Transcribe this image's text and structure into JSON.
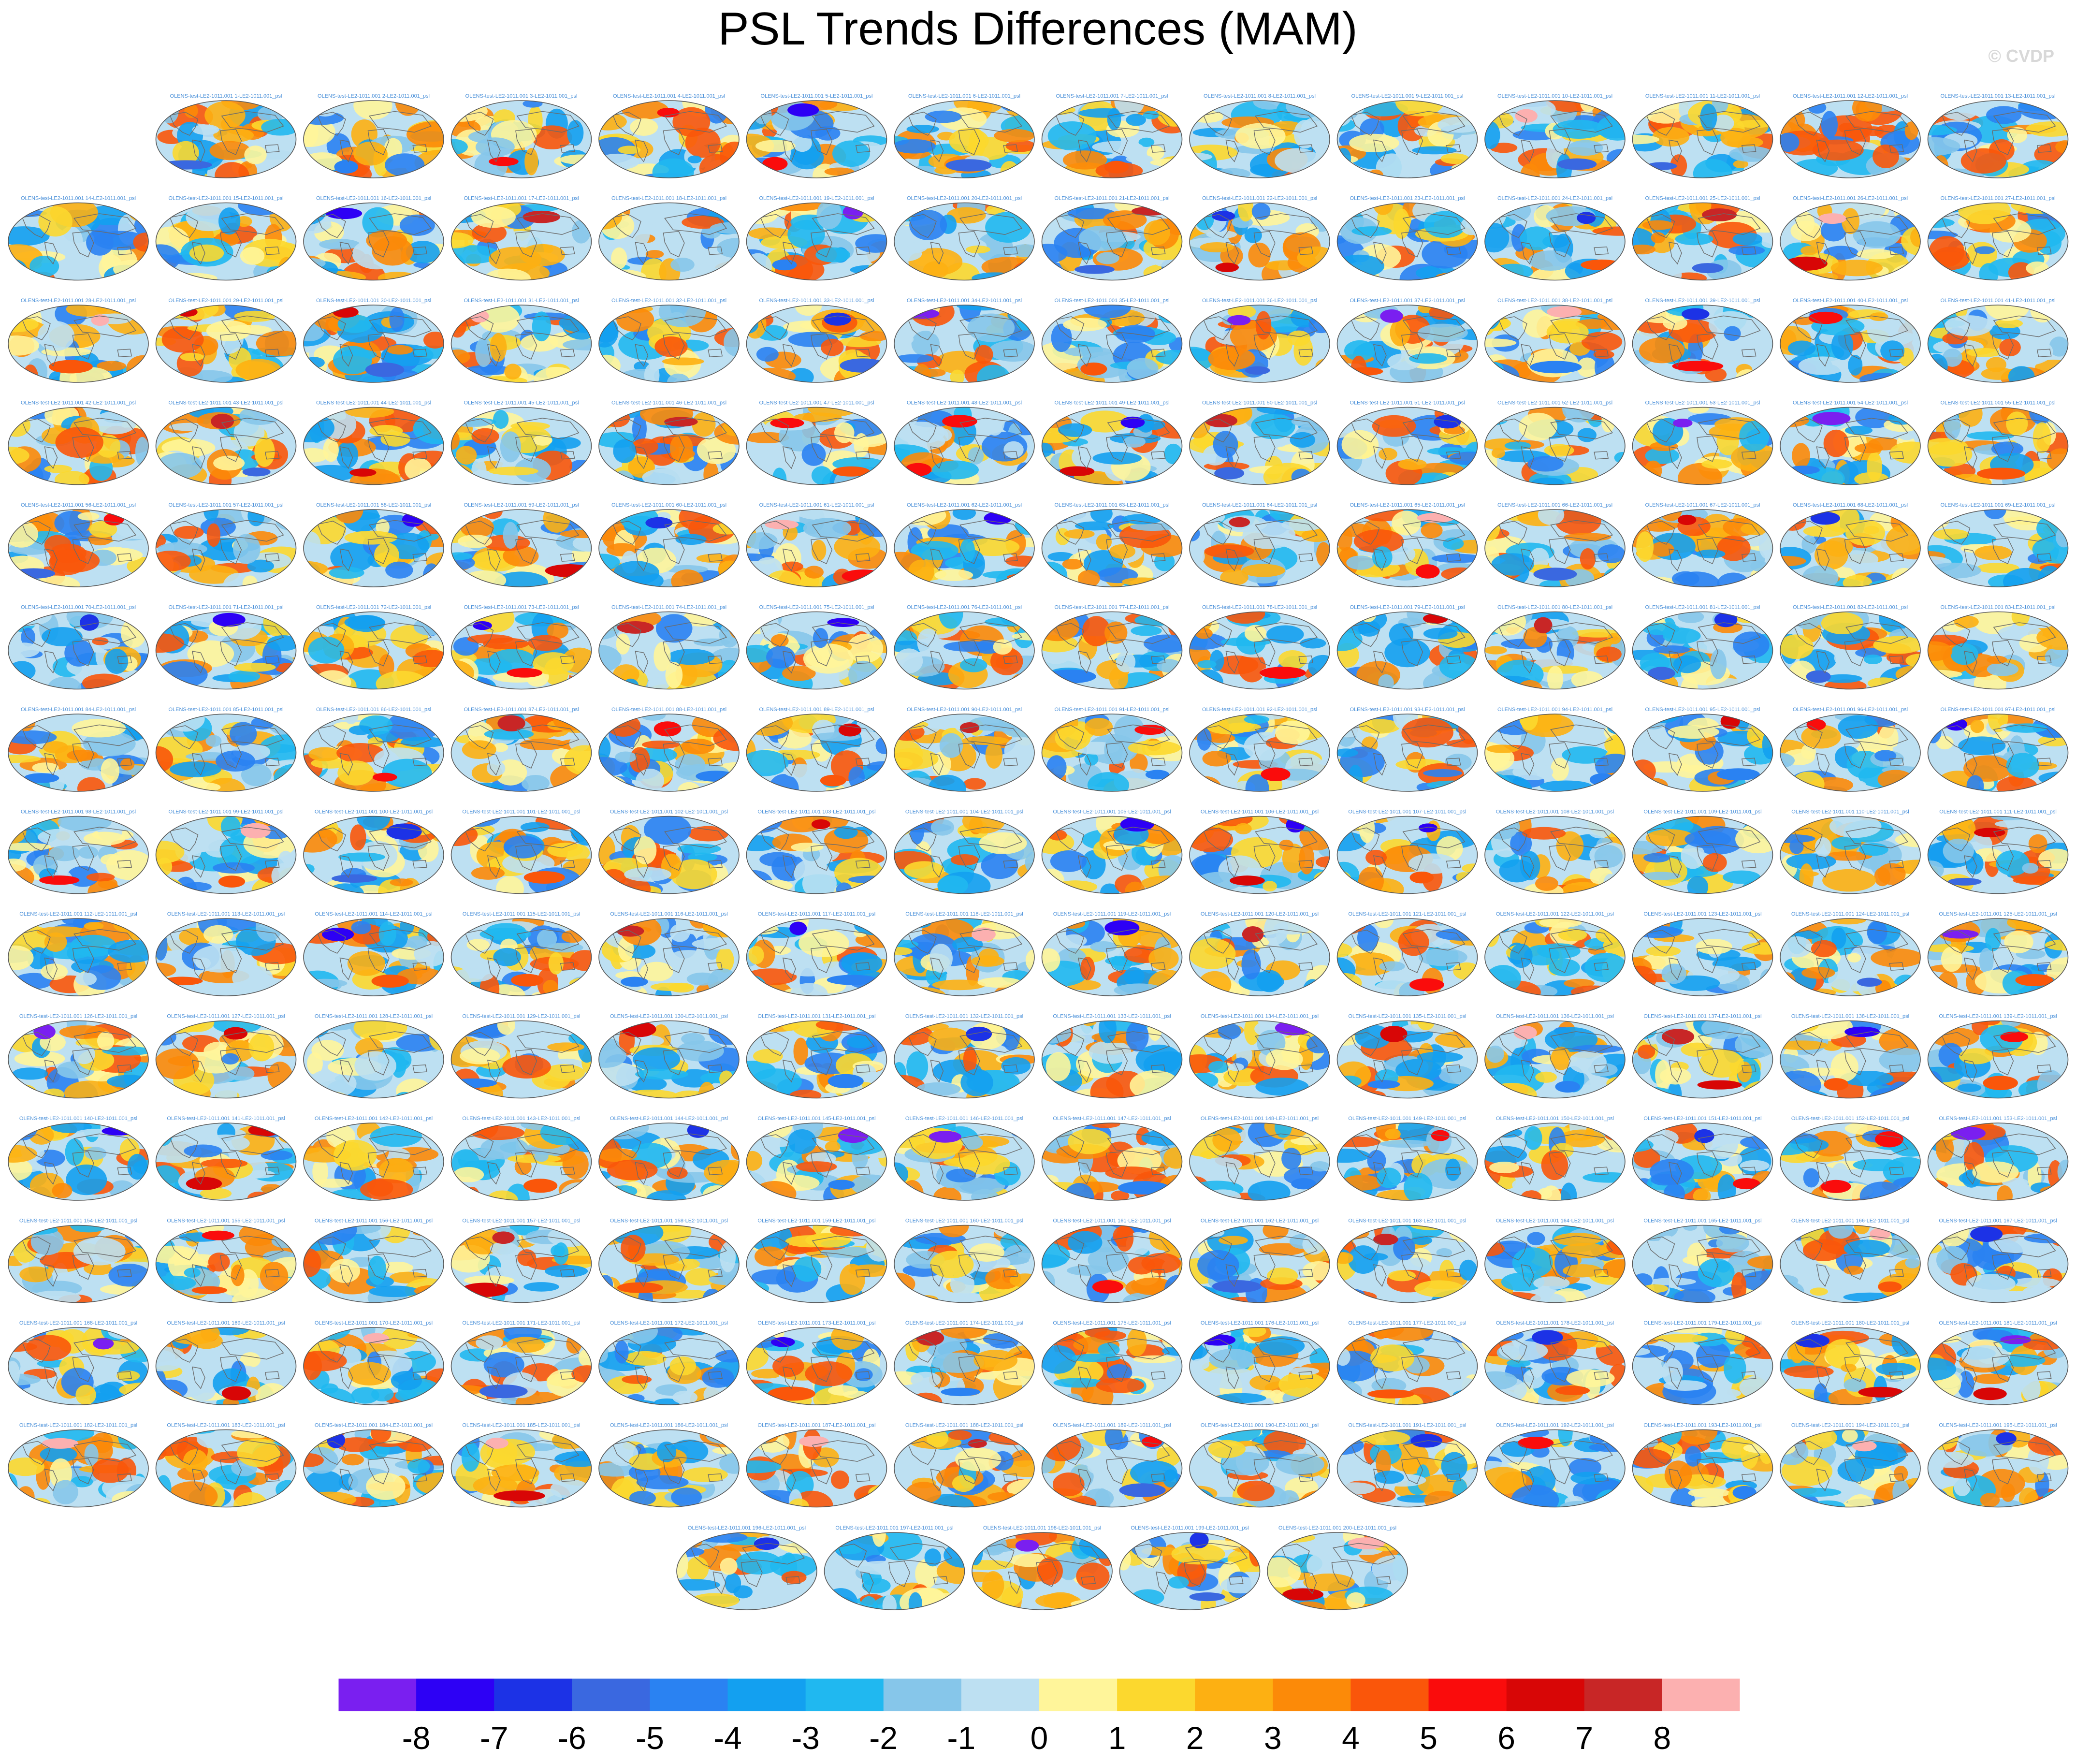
{
  "chart_data": {
    "type": "heatmap",
    "title": "PSL Trends Differences (MAM)",
    "watermark": "© CVDP",
    "panel_titles": [
      "OLENS-test-LE2-1011.001 1-LE2-1011.001_psl",
      "OLENS-test-LE2-1011.001 2-LE2-1011.001_psl",
      "OLENS-test-LE2-1011.001 3-LE2-1011.001_psl",
      "OLENS-test-LE2-1011.001 4-LE2-1011.001_psl",
      "OLENS-test-LE2-1011.001 5-LE2-1011.001_psl",
      "OLENS-test-LE2-1011.001 6-LE2-1011.001_psl",
      "OLENS-test-LE2-1011.001 7-LE2-1011.001_psl",
      "OLENS-test-LE2-1011.001 8-LE2-1011.001_psl",
      "OLENS-test-LE2-1011.001 9-LE2-1011.001_psl",
      "OLENS-test-LE2-1011.001 10-LE2-1011.001_psl",
      "OLENS-test-LE2-1011.001 11-LE2-1011.001_psl",
      "OLENS-test-LE2-1011.001 12-LE2-1011.001_psl",
      "OLENS-test-LE2-1011.001 13-LE2-1011.001_psl",
      "OLENS-test-LE2-1011.001 14-LE2-1011.001_psl",
      "OLENS-test-LE2-1011.001 15-LE2-1011.001_psl",
      "OLENS-test-LE2-1011.001 16-LE2-1011.001_psl",
      "OLENS-test-LE2-1011.001 17-LE2-1011.001_psl",
      "OLENS-test-LE2-1011.001 18-LE2-1011.001_psl",
      "OLENS-test-LE2-1011.001 19-LE2-1011.001_psl",
      "OLENS-test-LE2-1011.001 20-LE2-1011.001_psl",
      "OLENS-test-LE2-1011.001 21-LE2-1011.001_psl",
      "OLENS-test-LE2-1011.001 22-LE2-1011.001_psl",
      "OLENS-test-LE2-1011.001 23-LE2-1011.001_psl",
      "OLENS-test-LE2-1011.001 24-LE2-1011.001_psl",
      "OLENS-test-LE2-1011.001 25-LE2-1011.001_psl",
      "OLENS-test-LE2-1011.001 26-LE2-1011.001_psl",
      "OLENS-test-LE2-1011.001 27-LE2-1011.001_psl",
      "OLENS-test-LE2-1011.001 28-LE2-1011.001_psl",
      "OLENS-test-LE2-1011.001 29-LE2-1011.001_psl",
      "OLENS-test-LE2-1011.001 30-LE2-1011.001_psl",
      "OLENS-test-LE2-1011.001 31-LE2-1011.001_psl",
      "OLENS-test-LE2-1011.001 32-LE2-1011.001_psl",
      "OLENS-test-LE2-1011.001 33-LE2-1011.001_psl",
      "OLENS-test-LE2-1011.001 34-LE2-1011.001_psl",
      "OLENS-test-LE2-1011.001 35-LE2-1011.001_psl",
      "OLENS-test-LE2-1011.001 36-LE2-1011.001_psl",
      "OLENS-test-LE2-1011.001 37-LE2-1011.001_psl",
      "OLENS-test-LE2-1011.001 38-LE2-1011.001_psl",
      "OLENS-test-LE2-1011.001 39-LE2-1011.001_psl",
      "OLENS-test-LE2-1011.001 40-LE2-1011.001_psl",
      "OLENS-test-LE2-1011.001 41-LE2-1011.001_psl",
      "OLENS-test-LE2-1011.001 42-LE2-1011.001_psl",
      "OLENS-test-LE2-1011.001 43-LE2-1011.001_psl",
      "OLENS-test-LE2-1011.001 44-LE2-1011.001_psl",
      "OLENS-test-LE2-1011.001 45-LE2-1011.001_psl",
      "OLENS-test-LE2-1011.001 46-LE2-1011.001_psl",
      "OLENS-test-LE2-1011.001 47-LE2-1011.001_psl",
      "OLENS-test-LE2-1011.001 48-LE2-1011.001_psl",
      "OLENS-test-LE2-1011.001 49-LE2-1011.001_psl",
      "OLENS-test-LE2-1011.001 50-LE2-1011.001_psl",
      "OLENS-test-LE2-1011.001 51-LE2-1011.001_psl",
      "OLENS-test-LE2-1011.001 52-LE2-1011.001_psl",
      "OLENS-test-LE2-1011.001 53-LE2-1011.001_psl",
      "OLENS-test-LE2-1011.001 54-LE2-1011.001_psl",
      "OLENS-test-LE2-1011.001 55-LE2-1011.001_psl",
      "OLENS-test-LE2-1011.001 56-LE2-1011.001_psl",
      "OLENS-test-LE2-1011.001 57-LE2-1011.001_psl",
      "OLENS-test-LE2-1011.001 58-LE2-1011.001_psl",
      "OLENS-test-LE2-1011.001 59-LE2-1011.001_psl",
      "OLENS-test-LE2-1011.001 60-LE2-1011.001_psl",
      "OLENS-test-LE2-1011.001 61-LE2-1011.001_psl",
      "OLENS-test-LE2-1011.001 62-LE2-1011.001_psl",
      "OLENS-test-LE2-1011.001 63-LE2-1011.001_psl",
      "OLENS-test-LE2-1011.001 64-LE2-1011.001_psl",
      "OLENS-test-LE2-1011.001 65-LE2-1011.001_psl",
      "OLENS-test-LE2-1011.001 66-LE2-1011.001_psl",
      "OLENS-test-LE2-1011.001 67-LE2-1011.001_psl",
      "OLENS-test-LE2-1011.001 68-LE2-1011.001_psl",
      "OLENS-test-LE2-1011.001 69-LE2-1011.001_psl",
      "OLENS-test-LE2-1011.001 70-LE2-1011.001_psl",
      "OLENS-test-LE2-1011.001 71-LE2-1011.001_psl",
      "OLENS-test-LE2-1011.001 72-LE2-1011.001_psl",
      "OLENS-test-LE2-1011.001 73-LE2-1011.001_psl",
      "OLENS-test-LE2-1011.001 74-LE2-1011.001_psl",
      "OLENS-test-LE2-1011.001 75-LE2-1011.001_psl",
      "OLENS-test-LE2-1011.001 76-LE2-1011.001_psl",
      "OLENS-test-LE2-1011.001 77-LE2-1011.001_psl",
      "OLENS-test-LE2-1011.001 78-LE2-1011.001_psl",
      "OLENS-test-LE2-1011.001 79-LE2-1011.001_psl",
      "OLENS-test-LE2-1011.001 80-LE2-1011.001_psl",
      "OLENS-test-LE2-1011.001 81-LE2-1011.001_psl",
      "OLENS-test-LE2-1011.001 82-LE2-1011.001_psl",
      "OLENS-test-LE2-1011.001 83-LE2-1011.001_psl",
      "OLENS-test-LE2-1011.001 84-LE2-1011.001_psl",
      "OLENS-test-LE2-1011.001 85-LE2-1011.001_psl",
      "OLENS-test-LE2-1011.001 86-LE2-1011.001_psl",
      "OLENS-test-LE2-1011.001 87-LE2-1011.001_psl",
      "OLENS-test-LE2-1011.001 88-LE2-1011.001_psl",
      "OLENS-test-LE2-1011.001 89-LE2-1011.001_psl",
      "OLENS-test-LE2-1011.001 90-LE2-1011.001_psl",
      "OLENS-test-LE2-1011.001 91-LE2-1011.001_psl",
      "OLENS-test-LE2-1011.001 92-LE2-1011.001_psl",
      "OLENS-test-LE2-1011.001 93-LE2-1011.001_psl",
      "OLENS-test-LE2-1011.001 94-LE2-1011.001_psl",
      "OLENS-test-LE2-1011.001 95-LE2-1011.001_psl",
      "OLENS-test-LE2-1011.001 96-LE2-1011.001_psl",
      "OLENS-test-LE2-1011.001 97-LE2-1011.001_psl",
      "OLENS-test-LE2-1011.001 98-LE2-1011.001_psl",
      "OLENS-test-LE2-1011.001 99-LE2-1011.001_psl",
      "OLENS-test-LE2-1011.001 100-LE2-1011.001_psl",
      "OLENS-test-LE2-1011.001 101-LE2-1011.001_psl",
      "OLENS-test-LE2-1011.001 102-LE2-1011.001_psl",
      "OLENS-test-LE2-1011.001 103-LE2-1011.001_psl",
      "OLENS-test-LE2-1011.001 104-LE2-1011.001_psl",
      "OLENS-test-LE2-1011.001 105-LE2-1011.001_psl",
      "OLENS-test-LE2-1011.001 106-LE2-1011.001_psl",
      "OLENS-test-LE2-1011.001 107-LE2-1011.001_psl",
      "OLENS-test-LE2-1011.001 108-LE2-1011.001_psl",
      "OLENS-test-LE2-1011.001 109-LE2-1011.001_psl",
      "OLENS-test-LE2-1011.001 110-LE2-1011.001_psl",
      "OLENS-test-LE2-1011.001 111-LE2-1011.001_psl",
      "OLENS-test-LE2-1011.001 112-LE2-1011.001_psl",
      "OLENS-test-LE2-1011.001 113-LE2-1011.001_psl",
      "OLENS-test-LE2-1011.001 114-LE2-1011.001_psl",
      "OLENS-test-LE2-1011.001 115-LE2-1011.001_psl",
      "OLENS-test-LE2-1011.001 116-LE2-1011.001_psl",
      "OLENS-test-LE2-1011.001 117-LE2-1011.001_psl",
      "OLENS-test-LE2-1011.001 118-LE2-1011.001_psl",
      "OLENS-test-LE2-1011.001 119-LE2-1011.001_psl",
      "OLENS-test-LE2-1011.001 120-LE2-1011.001_psl",
      "OLENS-test-LE2-1011.001 121-LE2-1011.001_psl",
      "OLENS-test-LE2-1011.001 122-LE2-1011.001_psl",
      "OLENS-test-LE2-1011.001 123-LE2-1011.001_psl",
      "OLENS-test-LE2-1011.001 124-LE2-1011.001_psl",
      "OLENS-test-LE2-1011.001 125-LE2-1011.001_psl",
      "OLENS-test-LE2-1011.001 126-LE2-1011.001_psl",
      "OLENS-test-LE2-1011.001 127-LE2-1011.001_psl",
      "OLENS-test-LE2-1011.001 128-LE2-1011.001_psl",
      "OLENS-test-LE2-1011.001 129-LE2-1011.001_psl",
      "OLENS-test-LE2-1011.001 130-LE2-1011.001_psl",
      "OLENS-test-LE2-1011.001 131-LE2-1011.001_psl",
      "OLENS-test-LE2-1011.001 132-LE2-1011.001_psl",
      "OLENS-test-LE2-1011.001 133-LE2-1011.001_psl",
      "OLENS-test-LE2-1011.001 134-LE2-1011.001_psl",
      "OLENS-test-LE2-1011.001 135-LE2-1011.001_psl",
      "OLENS-test-LE2-1011.001 136-LE2-1011.001_psl",
      "OLENS-test-LE2-1011.001 137-LE2-1011.001_psl",
      "OLENS-test-LE2-1011.001 138-LE2-1011.001_psl",
      "OLENS-test-LE2-1011.001 139-LE2-1011.001_psl",
      "OLENS-test-LE2-1011.001 140-LE2-1011.001_psl",
      "OLENS-test-LE2-1011.001 141-LE2-1011.001_psl",
      "OLENS-test-LE2-1011.001 142-LE2-1011.001_psl",
      "OLENS-test-LE2-1011.001 143-LE2-1011.001_psl",
      "OLENS-test-LE2-1011.001 144-LE2-1011.001_psl",
      "OLENS-test-LE2-1011.001 145-LE2-1011.001_psl",
      "OLENS-test-LE2-1011.001 146-LE2-1011.001_psl",
      "OLENS-test-LE2-1011.001 147-LE2-1011.001_psl",
      "OLENS-test-LE2-1011.001 148-LE2-1011.001_psl",
      "OLENS-test-LE2-1011.001 149-LE2-1011.001_psl",
      "OLENS-test-LE2-1011.001 150-LE2-1011.001_psl",
      "OLENS-test-LE2-1011.001 151-LE2-1011.001_psl",
      "OLENS-test-LE2-1011.001 152-LE2-1011.001_psl",
      "OLENS-test-LE2-1011.001 153-LE2-1011.001_psl",
      "OLENS-test-LE2-1011.001 154-LE2-1011.001_psl",
      "OLENS-test-LE2-1011.001 155-LE2-1011.001_psl",
      "OLENS-test-LE2-1011.001 156-LE2-1011.001_psl",
      "OLENS-test-LE2-1011.001 157-LE2-1011.001_psl",
      "OLENS-test-LE2-1011.001 158-LE2-1011.001_psl",
      "OLENS-test-LE2-1011.001 159-LE2-1011.001_psl",
      "OLENS-test-LE2-1011.001 160-LE2-1011.001_psl",
      "OLENS-test-LE2-1011.001 161-LE2-1011.001_psl",
      "OLENS-test-LE2-1011.001 162-LE2-1011.001_psl",
      "OLENS-test-LE2-1011.001 163-LE2-1011.001_psl",
      "OLENS-test-LE2-1011.001 164-LE2-1011.001_psl",
      "OLENS-test-LE2-1011.001 165-LE2-1011.001_psl",
      "OLENS-test-LE2-1011.001 166-LE2-1011.001_psl",
      "OLENS-test-LE2-1011.001 167-LE2-1011.001_psl",
      "OLENS-test-LE2-1011.001 168-LE2-1011.001_psl",
      "OLENS-test-LE2-1011.001 169-LE2-1011.001_psl",
      "OLENS-test-LE2-1011.001 170-LE2-1011.001_psl",
      "OLENS-test-LE2-1011.001 171-LE2-1011.001_psl",
      "OLENS-test-LE2-1011.001 172-LE2-1011.001_psl",
      "OLENS-test-LE2-1011.001 173-LE2-1011.001_psl",
      "OLENS-test-LE2-1011.001 174-LE2-1011.001_psl",
      "OLENS-test-LE2-1011.001 175-LE2-1011.001_psl",
      "OLENS-test-LE2-1011.001 176-LE2-1011.001_psl",
      "OLENS-test-LE2-1011.001 177-LE2-1011.001_psl",
      "OLENS-test-LE2-1011.001 178-LE2-1011.001_psl",
      "OLENS-test-LE2-1011.001 179-LE2-1011.001_psl",
      "OLENS-test-LE2-1011.001 180-LE2-1011.001_psl",
      "OLENS-test-LE2-1011.001 181-LE2-1011.001_psl",
      "OLENS-test-LE2-1011.001 182-LE2-1011.001_psl",
      "OLENS-test-LE2-1011.001 183-LE2-1011.001_psl",
      "OLENS-test-LE2-1011.001 184-LE2-1011.001_psl",
      "OLENS-test-LE2-1011.001 185-LE2-1011.001_psl",
      "OLENS-test-LE2-1011.001 186-LE2-1011.001_psl",
      "OLENS-test-LE2-1011.001 187-LE2-1011.001_psl",
      "OLENS-test-LE2-1011.001 188-LE2-1011.001_psl",
      "OLENS-test-LE2-1011.001 189-LE2-1011.001_psl",
      "OLENS-test-LE2-1011.001 190-LE2-1011.001_psl",
      "OLENS-test-LE2-1011.001 191-LE2-1011.001_psl",
      "OLENS-test-LE2-1011.001 192-LE2-1011.001_psl",
      "OLENS-test-LE2-1011.001 193-LE2-1011.001_psl",
      "OLENS-test-LE2-1011.001 194-LE2-1011.001_psl",
      "OLENS-test-LE2-1011.001 195-LE2-1011.001_psl",
      "OLENS-test-LE2-1011.001 196-LE2-1011.001_psl",
      "OLENS-test-LE2-1011.001 197-LE2-1011.001_psl",
      "OLENS-test-LE2-1011.001 198-LE2-1011.001_psl",
      "OLENS-test-LE2-1011.001 199-LE2-1011.001_psl",
      "OLENS-test-LE2-1011.001 200-LE2-1011.001_psl"
    ],
    "colorbar": {
      "ticks": [
        -8,
        -7,
        -6,
        -5,
        -4,
        -3,
        -2,
        -1,
        0,
        1,
        2,
        3,
        4,
        5,
        6,
        7,
        8
      ],
      "colors": [
        "#7a1ff0",
        "#2d00f5",
        "#1c32e6",
        "#3a68e0",
        "#2a82f2",
        "#13a0f0",
        "#20b8f0",
        "#86c6ea",
        "#bde0f2",
        "#fff59a",
        "#fcd82e",
        "#fdb012",
        "#fc8a08",
        "#fa560a",
        "#fa0c0c",
        "#d80606",
        "#c82626",
        "#fcb0b0"
      ]
    }
  }
}
